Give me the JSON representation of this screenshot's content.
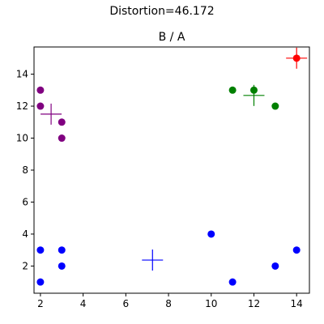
{
  "suptitle": "Distortion=46.172",
  "chart_data": {
    "type": "scatter",
    "title": "B / A",
    "xlabel": "",
    "ylabel": "",
    "xlim": [
      1.7,
      14.6
    ],
    "ylim": [
      0.3,
      15.7
    ],
    "xticks": [
      2,
      4,
      6,
      8,
      10,
      12,
      14
    ],
    "yticks": [
      2,
      4,
      6,
      8,
      10,
      12,
      14
    ],
    "grid": false,
    "clusters": [
      {
        "color": "#800080",
        "points": [
          [
            2,
            13
          ],
          [
            2,
            12
          ],
          [
            3,
            11
          ],
          [
            3,
            10
          ]
        ],
        "centroid": [
          2.5,
          11.5
        ],
        "centroid_marker": "plus"
      },
      {
        "color": "#008000",
        "points": [
          [
            11,
            13
          ],
          [
            12,
            13
          ],
          [
            13,
            12
          ]
        ],
        "centroid": [
          12,
          12.67
        ],
        "centroid_marker": "plus"
      },
      {
        "color": "#ff0000",
        "points": [
          [
            14,
            15
          ]
        ],
        "centroid": [
          14,
          15
        ],
        "centroid_marker": "plus"
      },
      {
        "color": "#0000ff",
        "points": [
          [
            2,
            3
          ],
          [
            2,
            1
          ],
          [
            3,
            3
          ],
          [
            3,
            2
          ],
          [
            10,
            4
          ],
          [
            11,
            1
          ],
          [
            13,
            2
          ],
          [
            14,
            3
          ]
        ],
        "centroid": [
          7.25,
          2.375
        ],
        "centroid_marker": "plus"
      }
    ]
  }
}
